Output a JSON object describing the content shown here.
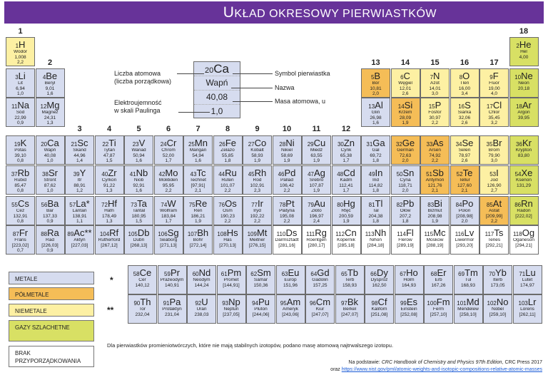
{
  "title_prefix": "U",
  "title_rest": "KŁAD OKRESOWY PIERWIASTKÓW",
  "groups": [
    "1",
    "2",
    "3",
    "4",
    "5",
    "6",
    "7",
    "8",
    "9",
    "10",
    "11",
    "12",
    "13",
    "14",
    "15",
    "16",
    "17",
    "18"
  ],
  "key": {
    "symbol": "Ca",
    "z": "20",
    "name": "Wapń",
    "mass": "40,08",
    "en": "1,0",
    "label_z": "Liczba atomowa\n(liczba porządkowa)",
    "label_en": "Elektroujemność\nw skali Paulinga",
    "label_sym": "Symbol pierwiastka",
    "label_name": "Nazwa",
    "label_mass": "Masa atomowa, u"
  },
  "colors": {
    "banner": "#673399",
    "metal": "#d6dcef",
    "semimetal": "#f5bd57",
    "nonmetal": "#fdf0a3",
    "noble": "#d8e064",
    "none": "#ffffff"
  },
  "elements": [
    [
      "1",
      "H",
      "Wodór",
      "1,008",
      "2,2",
      1,
      1,
      "nonmetal"
    ],
    [
      "2",
      "He",
      "Hel",
      "4,00",
      "",
      18,
      1,
      "noble"
    ],
    [
      "3",
      "Li",
      "Lit",
      "6,94",
      "1,0",
      1,
      2,
      "metal"
    ],
    [
      "4",
      "Be",
      "Beryl",
      "9,01",
      "1,6",
      2,
      2,
      "metal"
    ],
    [
      "5",
      "B",
      "Bor",
      "10,81",
      "2,0",
      13,
      2,
      "semi"
    ],
    [
      "6",
      "C",
      "Węgiel",
      "12,01",
      "2,6",
      14,
      2,
      "nonmetal"
    ],
    [
      "7",
      "N",
      "Azot",
      "14,01",
      "3,0",
      15,
      2,
      "nonmetal"
    ],
    [
      "8",
      "O",
      "Tlen",
      "16,00",
      "3,4",
      16,
      2,
      "nonmetal"
    ],
    [
      "9",
      "F",
      "Fluor",
      "19,00",
      "4,0",
      17,
      2,
      "nonmetal"
    ],
    [
      "10",
      "Ne",
      "Neon",
      "20,18",
      "",
      18,
      2,
      "noble"
    ],
    [
      "11",
      "Na",
      "Sód",
      "22,99",
      "0,9",
      1,
      3,
      "metal"
    ],
    [
      "12",
      "Mg",
      "Magnez",
      "24,31",
      "1,3",
      2,
      3,
      "metal"
    ],
    [
      "13",
      "Al",
      "Glin",
      "26,98",
      "1,6",
      13,
      3,
      "metal"
    ],
    [
      "14",
      "Si",
      "Krzem",
      "28,09",
      "1,9",
      14,
      3,
      "semi"
    ],
    [
      "15",
      "P",
      "Fosfor",
      "30,97",
      "2,2",
      15,
      3,
      "nonmetal"
    ],
    [
      "16",
      "S",
      "Siarka",
      "32,06",
      "2,6",
      16,
      3,
      "nonmetal"
    ],
    [
      "17",
      "Cl",
      "Chlor",
      "35,45",
      "3,2",
      17,
      3,
      "nonmetal"
    ],
    [
      "18",
      "Ar",
      "Argon",
      "39,95",
      "",
      18,
      3,
      "noble"
    ],
    [
      "19",
      "K",
      "Potas",
      "39,10",
      "0,8",
      1,
      4,
      "metal"
    ],
    [
      "20",
      "Ca",
      "Wapń",
      "40,08",
      "1,0",
      2,
      4,
      "metal"
    ],
    [
      "21",
      "Sc",
      "Skand",
      "44,96",
      "1,4",
      3,
      4,
      "metal"
    ],
    [
      "22",
      "Ti",
      "Tytan",
      "47,87",
      "1,5",
      4,
      4,
      "metal"
    ],
    [
      "23",
      "V",
      "Wanad",
      "50,94",
      "1,6",
      5,
      4,
      "metal"
    ],
    [
      "24",
      "Cr",
      "Chrom",
      "52,00",
      "1,7",
      6,
      4,
      "metal"
    ],
    [
      "25",
      "Mn",
      "Mangan",
      "54,94",
      "1,6",
      7,
      4,
      "metal"
    ],
    [
      "26",
      "Fe",
      "Żelazo",
      "55,85",
      "1,8",
      8,
      4,
      "metal"
    ],
    [
      "27",
      "Co",
      "Kobalt",
      "58,93",
      "1,9",
      9,
      4,
      "metal"
    ],
    [
      "28",
      "Ni",
      "Nikiel",
      "58,69",
      "1,9",
      10,
      4,
      "metal"
    ],
    [
      "29",
      "Cu",
      "Miedź",
      "63,55",
      "1,9",
      11,
      4,
      "metal"
    ],
    [
      "30",
      "Zn",
      "Cynk",
      "65,38",
      "1,7",
      12,
      4,
      "metal"
    ],
    [
      "31",
      "Ga",
      "Gal",
      "69,72",
      "1,8",
      13,
      4,
      "metal"
    ],
    [
      "32",
      "Ge",
      "German",
      "72,63",
      "2,0",
      14,
      4,
      "semi"
    ],
    [
      "33",
      "As",
      "Arsen",
      "74,92",
      "2,2",
      15,
      4,
      "semi"
    ],
    [
      "34",
      "Se",
      "Selen",
      "78,97",
      "2,6",
      16,
      4,
      "nonmetal"
    ],
    [
      "35",
      "Br",
      "Brom",
      "79,90",
      "3,0",
      17,
      4,
      "nonmetal"
    ],
    [
      "36",
      "Kr",
      "Krypton",
      "83,80",
      "",
      18,
      4,
      "noble"
    ],
    [
      "37",
      "Rb",
      "Rubid",
      "85,47",
      "0,8",
      1,
      5,
      "metal"
    ],
    [
      "38",
      "Sr",
      "Stront",
      "87,62",
      "1,0",
      2,
      5,
      "metal"
    ],
    [
      "39",
      "Y",
      "Itr",
      "88,91",
      "1,2",
      3,
      5,
      "metal"
    ],
    [
      "40",
      "Zr",
      "Cyrkon",
      "91,22",
      "1,3",
      4,
      5,
      "metal"
    ],
    [
      "41",
      "Nb",
      "Niob",
      "92,91",
      "1,6",
      5,
      5,
      "metal"
    ],
    [
      "42",
      "Mo",
      "Molibden",
      "95,95",
      "2,2",
      6,
      5,
      "metal"
    ],
    [
      "43",
      "Tc",
      "Technet",
      "[97,91]",
      "2,1",
      7,
      5,
      "metal"
    ],
    [
      "44",
      "Ru",
      "Ruten",
      "101,07",
      "2,2",
      8,
      5,
      "metal"
    ],
    [
      "45",
      "Rh",
      "Rod",
      "102,91",
      "2,3",
      9,
      5,
      "metal"
    ],
    [
      "46",
      "Pd",
      "Pallad",
      "106,42",
      "2,2",
      10,
      5,
      "metal"
    ],
    [
      "47",
      "Ag",
      "Srebro",
      "107,87",
      "1,9",
      11,
      5,
      "metal"
    ],
    [
      "48",
      "Cd",
      "Kadm",
      "112,41",
      "1,7",
      12,
      5,
      "metal"
    ],
    [
      "49",
      "In",
      "Ind",
      "114,82",
      "1,8",
      13,
      5,
      "metal"
    ],
    [
      "50",
      "Sn",
      "Cyna",
      "118,71",
      "2,0",
      14,
      5,
      "metal"
    ],
    [
      "51",
      "Sb",
      "Antymon",
      "121,76",
      "2,1",
      15,
      5,
      "semi"
    ],
    [
      "52",
      "Te",
      "Tellur",
      "127,60",
      "2,1",
      16,
      5,
      "semi"
    ],
    [
      "53",
      "I",
      "Jod",
      "126,90",
      "2,7",
      17,
      5,
      "nonmetal"
    ],
    [
      "54",
      "Xe",
      "Ksenon",
      "131,29",
      "",
      18,
      5,
      "noble"
    ],
    [
      "55",
      "Cs",
      "Cez",
      "132,91",
      "0,8",
      1,
      6,
      "metal"
    ],
    [
      "56",
      "Ba",
      "Bar",
      "137,33",
      "0,9",
      2,
      6,
      "metal"
    ],
    [
      "57",
      "La*",
      "Lantan",
      "138,91",
      "1,1",
      3,
      6,
      "metal"
    ],
    [
      "72",
      "Hf",
      "Hafn",
      "178,49",
      "1,3",
      4,
      6,
      "metal"
    ],
    [
      "73",
      "Ta",
      "Tantal",
      "180,95",
      "1,5",
      5,
      6,
      "metal"
    ],
    [
      "74",
      "W",
      "Wolfram",
      "183,84",
      "1,7",
      6,
      6,
      "metal"
    ],
    [
      "75",
      "Re",
      "Ren",
      "186,21",
      "1,9",
      7,
      6,
      "metal"
    ],
    [
      "76",
      "Os",
      "Osm",
      "190,23",
      "2,2",
      8,
      6,
      "metal"
    ],
    [
      "77",
      "Ir",
      "Iryd",
      "192,22",
      "2,2",
      9,
      6,
      "metal"
    ],
    [
      "78",
      "Pt",
      "Platyna",
      "195,08",
      "2,2",
      10,
      6,
      "metal"
    ],
    [
      "79",
      "Au",
      "Złoto",
      "196,97",
      "2,4",
      11,
      6,
      "metal"
    ],
    [
      "80",
      "Hg",
      "Rtęć",
      "200,59",
      "1,9",
      12,
      6,
      "metal"
    ],
    [
      "81",
      "Tl",
      "Tal",
      "204,38",
      "1,8",
      13,
      6,
      "metal"
    ],
    [
      "82",
      "Pb",
      "Ołów",
      "207,2",
      "1,8",
      14,
      6,
      "metal"
    ],
    [
      "83",
      "Bi",
      "Bizmut",
      "208,98",
      "1,9",
      15,
      6,
      "metal"
    ],
    [
      "84",
      "Po",
      "Polon",
      "[208,98]",
      "2,0",
      16,
      6,
      "metal"
    ],
    [
      "85",
      "At",
      "Astat",
      "[209,99]",
      "2,2",
      17,
      6,
      "semi"
    ],
    [
      "86",
      "Rn",
      "Radon",
      "[222,02]",
      "",
      18,
      6,
      "noble"
    ],
    [
      "87",
      "Fr",
      "Frans",
      "[223,02]",
      "0,7",
      1,
      7,
      "metal"
    ],
    [
      "88",
      "Ra",
      "Rad",
      "[226,03]",
      "0,9",
      2,
      7,
      "metal"
    ],
    [
      "89",
      "Ac**",
      "Aktyn",
      "[227,03]",
      "",
      3,
      7,
      "metal"
    ],
    [
      "104",
      "Rf",
      "Rutherford",
      "[267,12]",
      "",
      4,
      7,
      "metal"
    ],
    [
      "105",
      "Db",
      "Dubn",
      "[268,13]",
      "",
      5,
      7,
      "metal"
    ],
    [
      "106",
      "Sg",
      "Seaborg",
      "[271,13]",
      "",
      6,
      7,
      "metal"
    ],
    [
      "107",
      "Bh",
      "Bohr",
      "[272,14]",
      "",
      7,
      7,
      "metal"
    ],
    [
      "108",
      "Hs",
      "Has",
      "[270,13]",
      "",
      8,
      7,
      "metal"
    ],
    [
      "109",
      "Mt",
      "Meitner",
      "[276,15]",
      "",
      9,
      7,
      "metal"
    ],
    [
      "110",
      "Ds",
      "Darmsztadt",
      "[281,16]",
      "",
      10,
      7,
      "none"
    ],
    [
      "111",
      "Rg",
      "Roentgen",
      "[280,17]",
      "",
      11,
      7,
      "none"
    ],
    [
      "112",
      "Cn",
      "Kopernik",
      "[285,18]",
      "",
      12,
      7,
      "none"
    ],
    [
      "113",
      "Nh",
      "Nihon",
      "[284,18]",
      "",
      13,
      7,
      "none"
    ],
    [
      "114",
      "Fl",
      "Flerow",
      "[289,19]",
      "",
      14,
      7,
      "none"
    ],
    [
      "115",
      "Mc",
      "Moskow",
      "[288,19]",
      "",
      15,
      7,
      "none"
    ],
    [
      "116",
      "Lv",
      "Liwermor",
      "[293,20]",
      "",
      16,
      7,
      "none"
    ],
    [
      "117",
      "Ts",
      "Tenes",
      "[292,21]",
      "",
      17,
      7,
      "none"
    ],
    [
      "118",
      "Og",
      "Oganeson",
      "[294,21]",
      "",
      18,
      7,
      "none"
    ]
  ],
  "lanthanides": [
    [
      "58",
      "Ce",
      "Cer",
      "140,12"
    ],
    [
      "59",
      "Pr",
      "Prazeodym",
      "140,91"
    ],
    [
      "60",
      "Nd",
      "Neodym",
      "144,24"
    ],
    [
      "61",
      "Pm",
      "Promet",
      "[144,91]"
    ],
    [
      "62",
      "Sm",
      "Samar",
      "150,36"
    ],
    [
      "63",
      "Eu",
      "Europ",
      "151,96"
    ],
    [
      "64",
      "Gd",
      "Gadolin",
      "157,25"
    ],
    [
      "65",
      "Tb",
      "Terb",
      "158,93"
    ],
    [
      "66",
      "Dy",
      "Dysproz",
      "162,50"
    ],
    [
      "67",
      "Ho",
      "Holm",
      "164,93"
    ],
    [
      "68",
      "Er",
      "Erb",
      "167,26"
    ],
    [
      "69",
      "Tm",
      "Tul",
      "168,93"
    ],
    [
      "70",
      "Yb",
      "Iterb",
      "173,05"
    ],
    [
      "71",
      "Lu",
      "Lutet",
      "174,97"
    ]
  ],
  "actinides": [
    [
      "90",
      "Th",
      "Tor",
      "232,04"
    ],
    [
      "91",
      "Pa",
      "Protaktyn",
      "231,04"
    ],
    [
      "92",
      "U",
      "Uran",
      "238,03"
    ],
    [
      "93",
      "Np",
      "Neptun",
      "[237,05]"
    ],
    [
      "94",
      "Pu",
      "Pluton",
      "[244,06]"
    ],
    [
      "95",
      "Am",
      "Ameryk",
      "[243,06]"
    ],
    [
      "96",
      "Cm",
      "Kiur",
      "[247,07]"
    ],
    [
      "97",
      "Bk",
      "Berkel",
      "[247,07]"
    ],
    [
      "98",
      "Cf",
      "Kaliforn",
      "[251,08]"
    ],
    [
      "99",
      "Es",
      "Einstein",
      "[252,08]"
    ],
    [
      "100",
      "Fm",
      "Ferm",
      "[257,10]"
    ],
    [
      "101",
      "Md",
      "Mendelew",
      "[258,10]"
    ],
    [
      "102",
      "No",
      "Nobel",
      "[259,10]"
    ],
    [
      "103",
      "Lr",
      "Lorens",
      "[262,11]"
    ]
  ],
  "legend": [
    {
      "label": "METALE",
      "cls": "metal"
    },
    {
      "label": "PÓŁMETALE",
      "cls": "semi"
    },
    {
      "label": "NIEMETALE",
      "cls": "nonmetal"
    },
    {
      "label": "GAZY SZLACHETNE",
      "cls": "noble"
    },
    {
      "label": "BRAK PRZYPORZĄDKOWANIA",
      "cls": "none"
    }
  ],
  "star1": "*",
  "star2": "**",
  "note": "Dla pierwiastków promieniotwórczych, które nie mają stabilnych izotopów, podano masę atomową najtrwalszego izotopu.",
  "source_prefix": "Na podstawie: ",
  "source_title": "CRC Handbook of Chemistry and Physics 97th Edition",
  "source_suffix": ", CRC Press 2017",
  "source_oraz": "oraz ",
  "source_url": "https://www.nist.gov/pml/atomic-weights-and-isotopic-compositions-relative-atomic-masses"
}
